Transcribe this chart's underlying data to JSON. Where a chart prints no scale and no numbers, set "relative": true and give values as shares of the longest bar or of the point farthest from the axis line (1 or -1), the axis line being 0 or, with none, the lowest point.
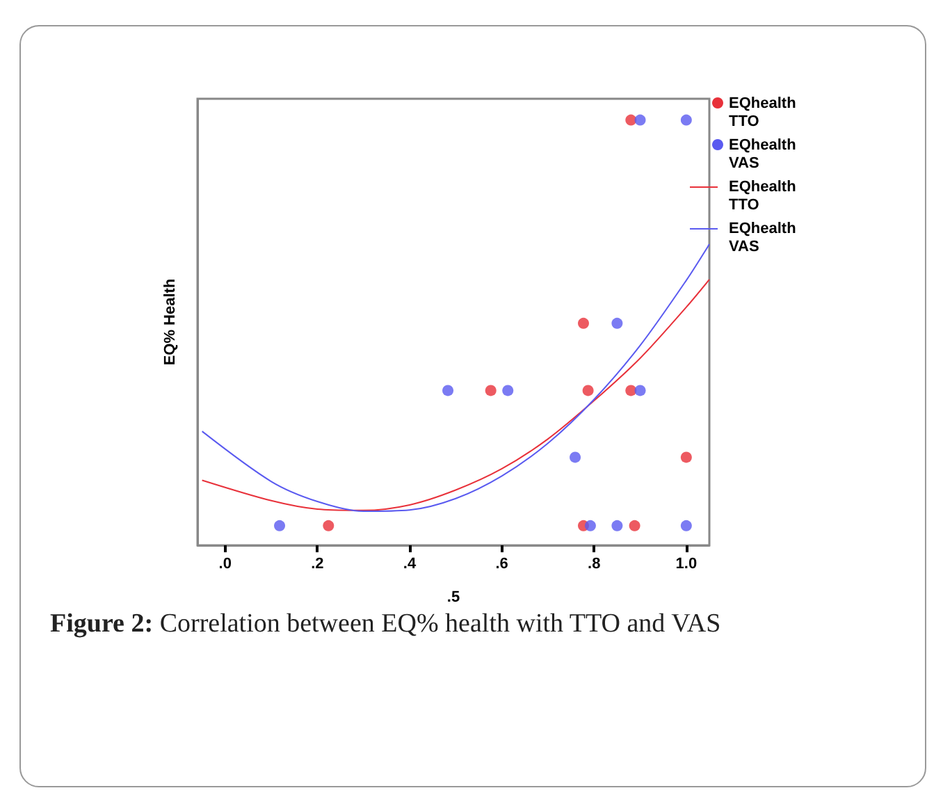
{
  "chart_data": {
    "type": "scatter",
    "relative": true,
    "ylabel": "EQ% Health",
    "xlabel": ".5",
    "annotations": [
      "Figure 2: Correlation between EQ% health with TTO and VAS"
    ],
    "xlim": [
      -0.06,
      1.05
    ],
    "xticks": [
      {
        "value": 0,
        "label": ".0"
      },
      {
        "value": 0.2,
        "label": ".2"
      },
      {
        "value": 0.4,
        "label": ".4"
      },
      {
        "value": 0.6,
        "label": ".6"
      },
      {
        "value": 0.8,
        "label": ".8"
      },
      {
        "value": 1,
        "label": "1.0"
      }
    ],
    "tick_labels": "x",
    "grid": false,
    "legend": "right",
    "marker": "circle",
    "series": [
      {
        "name": "EQhealth TTO",
        "color": "#e8313a",
        "x": [
          0.88,
          0.224,
          0.576,
          0.777,
          0.787,
          0.88,
          1.0,
          0.777,
          0.888
        ],
        "values": [
          1,
          0.046,
          0.364,
          0.522,
          0.364,
          0.364,
          0.207,
          0.046,
          0.046
        ]
      },
      {
        "name": "EQhealth VAS",
        "color": "#5a5af0",
        "x": [
          0.9,
          1.0,
          0.118,
          0.483,
          0.613,
          0.85,
          0.9,
          0.759,
          0.792,
          0.85,
          1.0
        ],
        "values": [
          1,
          1,
          0.046,
          0.364,
          0.364,
          0.522,
          0.364,
          0.207,
          0.046,
          0.046,
          0.046
        ]
      },
      {
        "name": "EQhealth TTO",
        "type": "line",
        "marker": "none",
        "color": "#e8313a",
        "line_style": "solid",
        "x": [
          -0.05,
          0.1,
          0.2,
          0.3,
          0.4,
          0.5,
          0.6,
          0.7,
          0.8,
          0.9,
          1.0,
          1.05
        ],
        "values": [
          0.153,
          0.105,
          0.085,
          0.082,
          0.095,
          0.13,
          0.18,
          0.25,
          0.34,
          0.44,
          0.56,
          0.625
        ]
      },
      {
        "name": "EQhealth VAS",
        "type": "line",
        "marker": "none",
        "color": "#5a5af0",
        "line_style": "solid",
        "x": [
          -0.05,
          0.1,
          0.2,
          0.3,
          0.4,
          0.5,
          0.6,
          0.7,
          0.8,
          0.9,
          1.0,
          1.05
        ],
        "values": [
          0.268,
          0.15,
          0.103,
          0.08,
          0.083,
          0.11,
          0.163,
          0.24,
          0.343,
          0.47,
          0.623,
          0.708
        ]
      }
    ]
  }
}
